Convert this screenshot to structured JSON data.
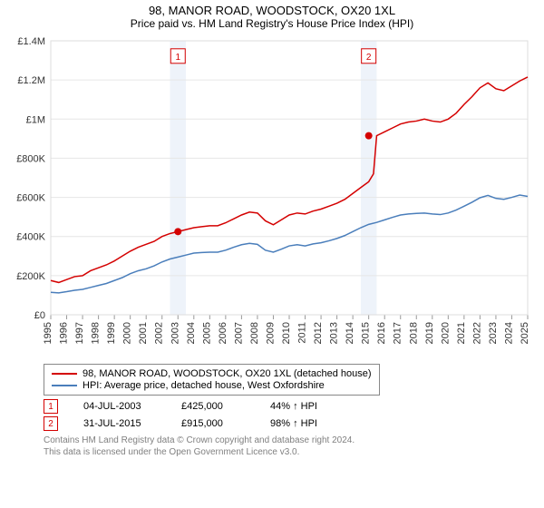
{
  "title": "98, MANOR ROAD, WOODSTOCK, OX20 1XL",
  "subtitle": "Price paid vs. HM Land Registry's House Price Index (HPI)",
  "chart": {
    "type": "line",
    "background_color": "#ffffff",
    "plot_border_color": "#dddddd",
    "grid_color": "#e6e6e6",
    "plot_bands": [
      {
        "from": 2002.5,
        "to": 2003.5,
        "color": "#eef3fa"
      },
      {
        "from": 2014.5,
        "to": 2015.5,
        "color": "#eef3fa"
      }
    ],
    "x": {
      "min": 1995,
      "max": 2025,
      "tick_step": 1,
      "ticks": [
        1995,
        1996,
        1997,
        1998,
        1999,
        2000,
        2001,
        2002,
        2003,
        2004,
        2005,
        2006,
        2007,
        2008,
        2009,
        2010,
        2011,
        2012,
        2013,
        2014,
        2015,
        2016,
        2017,
        2018,
        2019,
        2020,
        2021,
        2022,
        2023,
        2024,
        2025
      ],
      "tick_rotation": -90,
      "tick_fontsize": 11,
      "tick_color": "#333333"
    },
    "y": {
      "min": 0,
      "max": 1400000,
      "tick_step": 200000,
      "ticks": [
        0,
        200000,
        400000,
        600000,
        800000,
        1000000,
        1200000,
        1400000
      ],
      "tick_labels": [
        "£0",
        "£200K",
        "£400K",
        "£600K",
        "£800K",
        "£1M",
        "£1.2M",
        "£1.4M"
      ],
      "tick_fontsize": 11,
      "tick_color": "#333333"
    },
    "series": [
      {
        "name": "manor_road",
        "color": "#d40000",
        "line_width": 1.5,
        "points": [
          [
            1995,
            175000
          ],
          [
            1995.5,
            165000
          ],
          [
            1996,
            180000
          ],
          [
            1996.5,
            195000
          ],
          [
            1997,
            200000
          ],
          [
            1997.5,
            225000
          ],
          [
            1998,
            240000
          ],
          [
            1998.5,
            255000
          ],
          [
            1999,
            275000
          ],
          [
            1999.5,
            300000
          ],
          [
            2000,
            325000
          ],
          [
            2000.5,
            345000
          ],
          [
            2001,
            360000
          ],
          [
            2001.5,
            375000
          ],
          [
            2002,
            400000
          ],
          [
            2002.5,
            415000
          ],
          [
            2003,
            425000
          ],
          [
            2003.5,
            435000
          ],
          [
            2004,
            445000
          ],
          [
            2004.5,
            450000
          ],
          [
            2005,
            455000
          ],
          [
            2005.5,
            455000
          ],
          [
            2006,
            470000
          ],
          [
            2006.5,
            490000
          ],
          [
            2007,
            510000
          ],
          [
            2007.5,
            525000
          ],
          [
            2008,
            520000
          ],
          [
            2008.5,
            480000
          ],
          [
            2009,
            460000
          ],
          [
            2009.5,
            485000
          ],
          [
            2010,
            510000
          ],
          [
            2010.5,
            520000
          ],
          [
            2011,
            515000
          ],
          [
            2011.5,
            530000
          ],
          [
            2012,
            540000
          ],
          [
            2012.5,
            555000
          ],
          [
            2013,
            570000
          ],
          [
            2013.5,
            590000
          ],
          [
            2014,
            620000
          ],
          [
            2014.5,
            650000
          ],
          [
            2015,
            680000
          ],
          [
            2015.3,
            720000
          ],
          [
            2015.5,
            915000
          ],
          [
            2016,
            935000
          ],
          [
            2016.5,
            955000
          ],
          [
            2017,
            975000
          ],
          [
            2017.5,
            985000
          ],
          [
            2018,
            990000
          ],
          [
            2018.5,
            1000000
          ],
          [
            2019,
            990000
          ],
          [
            2019.5,
            985000
          ],
          [
            2020,
            1000000
          ],
          [
            2020.5,
            1030000
          ],
          [
            2021,
            1075000
          ],
          [
            2021.5,
            1115000
          ],
          [
            2022,
            1160000
          ],
          [
            2022.5,
            1185000
          ],
          [
            2023,
            1155000
          ],
          [
            2023.5,
            1145000
          ],
          [
            2024,
            1170000
          ],
          [
            2024.5,
            1195000
          ],
          [
            2025,
            1215000
          ]
        ]
      },
      {
        "name": "hpi",
        "color": "#4a7ebb",
        "line_width": 1.5,
        "points": [
          [
            1995,
            115000
          ],
          [
            1995.5,
            112000
          ],
          [
            1996,
            118000
          ],
          [
            1996.5,
            125000
          ],
          [
            1997,
            130000
          ],
          [
            1997.5,
            140000
          ],
          [
            1998,
            150000
          ],
          [
            1998.5,
            160000
          ],
          [
            1999,
            175000
          ],
          [
            1999.5,
            190000
          ],
          [
            2000,
            210000
          ],
          [
            2000.5,
            225000
          ],
          [
            2001,
            235000
          ],
          [
            2001.5,
            250000
          ],
          [
            2002,
            270000
          ],
          [
            2002.5,
            285000
          ],
          [
            2003,
            295000
          ],
          [
            2003.5,
            305000
          ],
          [
            2004,
            315000
          ],
          [
            2004.5,
            318000
          ],
          [
            2005,
            320000
          ],
          [
            2005.5,
            320000
          ],
          [
            2006,
            330000
          ],
          [
            2006.5,
            345000
          ],
          [
            2007,
            358000
          ],
          [
            2007.5,
            365000
          ],
          [
            2008,
            360000
          ],
          [
            2008.5,
            330000
          ],
          [
            2009,
            320000
          ],
          [
            2009.5,
            335000
          ],
          [
            2010,
            352000
          ],
          [
            2010.5,
            358000
          ],
          [
            2011,
            352000
          ],
          [
            2011.5,
            362000
          ],
          [
            2012,
            368000
          ],
          [
            2012.5,
            378000
          ],
          [
            2013,
            390000
          ],
          [
            2013.5,
            405000
          ],
          [
            2014,
            425000
          ],
          [
            2014.5,
            445000
          ],
          [
            2015,
            462000
          ],
          [
            2015.5,
            472000
          ],
          [
            2016,
            485000
          ],
          [
            2016.5,
            498000
          ],
          [
            2017,
            510000
          ],
          [
            2017.5,
            515000
          ],
          [
            2018,
            518000
          ],
          [
            2018.5,
            520000
          ],
          [
            2019,
            515000
          ],
          [
            2019.5,
            512000
          ],
          [
            2020,
            520000
          ],
          [
            2020.5,
            535000
          ],
          [
            2021,
            555000
          ],
          [
            2021.5,
            575000
          ],
          [
            2022,
            598000
          ],
          [
            2022.5,
            610000
          ],
          [
            2023,
            595000
          ],
          [
            2023.5,
            590000
          ],
          [
            2024,
            600000
          ],
          [
            2024.5,
            612000
          ],
          [
            2025,
            605000
          ]
        ]
      }
    ],
    "markers": [
      {
        "num": "1",
        "x": 2003,
        "y": 425000,
        "label_y": 1350000
      },
      {
        "num": "2",
        "x": 2015,
        "y": 915000,
        "label_y": 1350000
      }
    ],
    "marker_fill": "#d40000",
    "marker_radius": 4,
    "marker_box_border": "#d40000",
    "marker_box_bg": "#ffffff",
    "marker_box_text": "#d40000"
  },
  "legend": {
    "s1": {
      "label": "98, MANOR ROAD, WOODSTOCK, OX20 1XL (detached house)",
      "color": "#d40000"
    },
    "s2": {
      "label": "HPI: Average price, detached house, West Oxfordshire",
      "color": "#4a7ebb"
    }
  },
  "sales": [
    {
      "num": "1",
      "date": "04-JUL-2003",
      "price": "£425,000",
      "delta": "44% ↑ HPI"
    },
    {
      "num": "2",
      "date": "31-JUL-2015",
      "price": "£915,000",
      "delta": "98% ↑ HPI"
    }
  ],
  "footer": {
    "line1": "Contains HM Land Registry data © Crown copyright and database right 2024.",
    "line2": "This data is licensed under the Open Government Licence v3.0."
  }
}
